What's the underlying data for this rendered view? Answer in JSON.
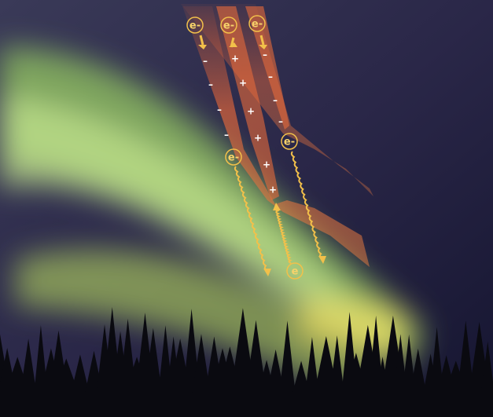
{
  "electrons": [
    "e-",
    "e-",
    "e-",
    "e-",
    "e-",
    "e"
  ],
  "negative_charges": [
    "–",
    "–",
    "–",
    "–",
    "–",
    "–",
    "–",
    "–"
  ],
  "positive_charges": [
    "+",
    "+",
    "+",
    "+",
    "+",
    "+"
  ]
}
